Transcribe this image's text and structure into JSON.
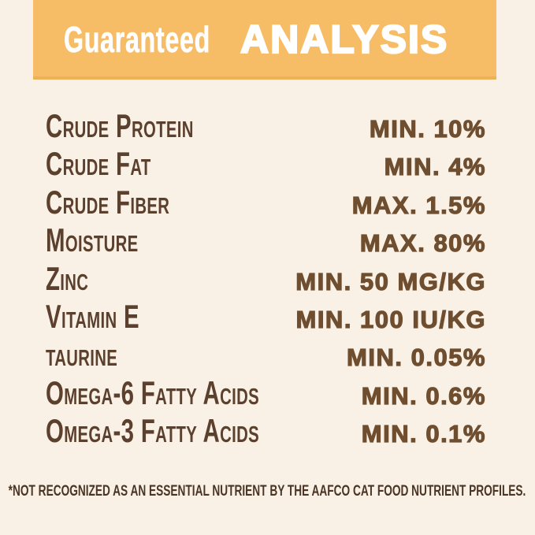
{
  "page": {
    "background_color": "#FAF1E6",
    "type": "pet-food guaranteed analysis label"
  },
  "header": {
    "word1": "Guaranteed",
    "word2": "ANALYSIS",
    "banner_color": "#F7BC66",
    "text_color": "#FFFFFF"
  },
  "table": {
    "label_color": "#5C402E",
    "value_color": "#6F4E30",
    "rows": [
      {
        "label": "Crude Protein",
        "value": "MIN. 10%"
      },
      {
        "label": "Crude Fat",
        "value": "MIN. 4%"
      },
      {
        "label": "Crude Fiber",
        "value": "MAX. 1.5%"
      },
      {
        "label": "Moisture",
        "value": "MAX. 80%"
      },
      {
        "label": "Zinc",
        "value": "MIN. 50 MG/KG"
      },
      {
        "label": "Vitamin E",
        "value": "MIN. 100 IU/KG"
      },
      {
        "label": "taurine",
        "value": "MIN. 0.05%"
      },
      {
        "label": "Omega-6 Fatty Acids",
        "value": "MIN. 0.6%"
      },
      {
        "label": "Omega-3 Fatty Acids",
        "value": "MIN. 0.1%"
      }
    ]
  },
  "footnote": {
    "text": "*NOT RECOGNIZED AS AN ESSENTIAL NUTRIENT BY THE AAFCO CAT FOOD NUTRIENT PROFILES.",
    "color": "#4A3524"
  }
}
